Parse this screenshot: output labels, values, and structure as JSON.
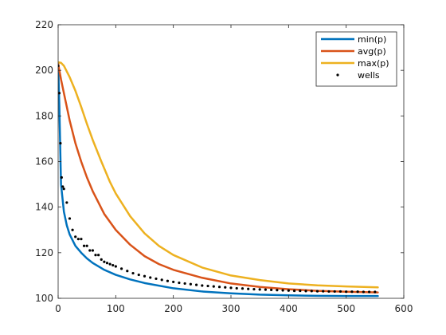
{
  "chart_data": {
    "type": "line",
    "title": "",
    "xlabel": "",
    "ylabel": "",
    "xlim": [
      0,
      600
    ],
    "ylim": [
      100,
      220
    ],
    "xticks": [
      0,
      100,
      200,
      300,
      400,
      500,
      600
    ],
    "yticks": [
      100,
      120,
      140,
      160,
      180,
      200,
      220
    ],
    "grid": false,
    "legend_position": "top-right",
    "series": [
      {
        "name": "min(p)",
        "kind": "line",
        "color": "#0072BD",
        "x": [
          0,
          2,
          5,
          10,
          15,
          20,
          30,
          40,
          50,
          60,
          80,
          100,
          125,
          150,
          200,
          250,
          300,
          350,
          400,
          450,
          500,
          555
        ],
        "y": [
          203,
          185,
          150,
          138,
          132,
          128,
          123,
          120,
          117.5,
          115.5,
          112.5,
          110.3,
          108.3,
          106.7,
          104.4,
          103.0,
          102.2,
          101.6,
          101.3,
          101.1,
          101.0,
          101.0
        ]
      },
      {
        "name": "avg(p)",
        "kind": "line",
        "color": "#D95319",
        "x": [
          0,
          5,
          10,
          20,
          30,
          40,
          50,
          60,
          70,
          80,
          100,
          125,
          150,
          175,
          200,
          250,
          300,
          350,
          400,
          450,
          500,
          555
        ],
        "y": [
          203,
          196,
          190,
          178,
          168,
          160,
          153,
          147,
          142,
          137,
          130,
          123.5,
          118.5,
          115,
          112.5,
          109,
          106.5,
          105,
          104,
          103.3,
          102.9,
          102.6
        ]
      },
      {
        "name": "max(p)",
        "kind": "line",
        "color": "#EDB120",
        "x": [
          0,
          5,
          10,
          20,
          30,
          40,
          50,
          60,
          75,
          90,
          100,
          125,
          150,
          175,
          200,
          250,
          300,
          350,
          400,
          450,
          500,
          555
        ],
        "y": [
          203.5,
          203.3,
          202,
          197,
          191,
          184,
          176.5,
          169.5,
          160,
          151,
          146,
          136,
          128.5,
          123,
          119,
          113.5,
          110,
          108,
          106.5,
          105.7,
          105.2,
          104.8
        ]
      },
      {
        "name": "wells",
        "kind": "scatter",
        "color": "#000000",
        "x": [
          0,
          2,
          4,
          6,
          8,
          10,
          15,
          20,
          25,
          30,
          35,
          40,
          45,
          50,
          55,
          60,
          65,
          70,
          75,
          80,
          85,
          90,
          95,
          100,
          110,
          120,
          130,
          140,
          150,
          160,
          170,
          180,
          190,
          200,
          210,
          220,
          230,
          240,
          250,
          260,
          270,
          280,
          290,
          300,
          310,
          320,
          330,
          340,
          350,
          360,
          370,
          380,
          390,
          400,
          410,
          420,
          430,
          440,
          450,
          460,
          470,
          480,
          490,
          500,
          510,
          520,
          530,
          540,
          550
        ],
        "y": [
          202,
          190,
          168,
          153,
          149,
          148,
          142,
          135,
          130,
          127,
          126,
          126,
          123,
          123,
          121,
          121,
          119,
          119,
          117,
          116,
          115.5,
          115,
          114.5,
          114,
          113,
          112,
          111,
          110.3,
          109.7,
          109.1,
          108.6,
          108.1,
          107.6,
          107.2,
          106.8,
          106.5,
          106.2,
          105.9,
          105.6,
          105.4,
          105.2,
          105.0,
          104.8,
          104.6,
          104.4,
          104.3,
          104.1,
          104.0,
          103.9,
          103.8,
          103.7,
          103.6,
          103.5,
          103.4,
          103.3,
          103.3,
          103.2,
          103.2,
          103.1,
          103.1,
          103.0,
          103.0,
          103.0,
          102.9,
          102.9,
          102.9,
          102.8,
          102.8,
          102.8
        ]
      }
    ]
  }
}
